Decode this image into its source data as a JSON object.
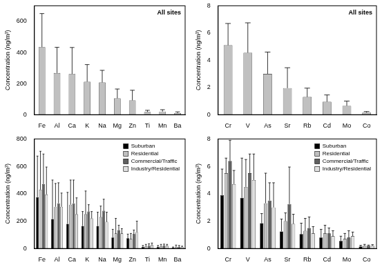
{
  "chart_data": [
    {
      "type": "bar",
      "title": "All sites",
      "y_label": "Concentration (ng/m³)",
      "categories": [
        "Fe",
        "Al",
        "Ca",
        "K",
        "Na",
        "Mg",
        "Zn",
        "Ti",
        "Mn",
        "Ba"
      ],
      "values": [
        435,
        268,
        262,
        212,
        207,
        105,
        92,
        18,
        20,
        10
      ],
      "errors": [
        215,
        165,
        170,
        110,
        78,
        60,
        65,
        10,
        12,
        8
      ],
      "color": "#c0c0c0",
      "ylim": [
        0,
        700
      ],
      "yticks": [
        0,
        200,
        400,
        600
      ],
      "grid": false
    },
    {
      "type": "bar",
      "title": "All sites",
      "y_label": "Concentration (ng/m³)",
      "categories": [
        "Cr",
        "V",
        "As",
        "Sr",
        "Rb",
        "Cd",
        "Mo",
        "Co"
      ],
      "values": [
        5.1,
        4.55,
        3.0,
        1.95,
        1.3,
        0.95,
        0.65,
        0.15
      ],
      "errors": [
        1.6,
        2.2,
        1.6,
        1.5,
        0.65,
        0.5,
        0.35,
        0.08
      ],
      "color": "#c0c0c0",
      "ylim": [
        0,
        8
      ],
      "yticks": [
        0,
        2,
        4,
        6,
        8
      ],
      "grid": false
    },
    {
      "type": "bar",
      "y_label": "Concentration (ng/m³)",
      "categories": [
        "Fe",
        "Al",
        "Ca",
        "K",
        "Na",
        "Mg",
        "Zn",
        "Ti",
        "Mn",
        "Ba"
      ],
      "series": [
        {
          "name": "Suburban",
          "color": "#000000",
          "values": [
            375,
            215,
            180,
            165,
            165,
            80,
            75,
            12,
            12,
            6
          ],
          "errors": [
            300,
            285,
            230,
            105,
            100,
            60,
            30,
            10,
            10,
            5
          ]
        },
        {
          "name": "Residential",
          "color": "#c0c0c0",
          "values": [
            430,
            305,
            320,
            250,
            230,
            110,
            70,
            15,
            15,
            10
          ],
          "errors": [
            280,
            170,
            180,
            170,
            80,
            110,
            40,
            15,
            15,
            15
          ]
        },
        {
          "name": "Commercial/Traffic",
          "color": "#606060",
          "values": [
            470,
            330,
            330,
            270,
            275,
            135,
            105,
            20,
            22,
            12
          ],
          "errors": [
            220,
            150,
            170,
            50,
            85,
            35,
            30,
            15,
            10,
            10
          ]
        },
        {
          "name": "Industry/Residential",
          "color": "#e0e0e0",
          "values": [
            395,
            305,
            250,
            220,
            195,
            110,
            120,
            25,
            20,
            12
          ],
          "errors": [
            200,
            100,
            120,
            50,
            70,
            35,
            80,
            15,
            10,
            5
          ]
        }
      ],
      "ylim": [
        0,
        800
      ],
      "yticks": [
        0,
        200,
        400,
        600,
        800
      ],
      "grid": false,
      "legend": "upper right"
    },
    {
      "type": "bar",
      "y_label": "Concentration (ng/m³)",
      "categories": [
        "Cr",
        "V",
        "As",
        "Sr",
        "Rb",
        "Cd",
        "Mo",
        "Co"
      ],
      "series": [
        {
          "name": "Suburban",
          "color": "#000000",
          "values": [
            3.9,
            3.7,
            1.85,
            1.25,
            1.05,
            0.8,
            0.55,
            0.15
          ],
          "errors": [
            1.9,
            2.9,
            0.7,
            0.9,
            0.8,
            0.6,
            0.35,
            0.08
          ]
        },
        {
          "name": "Residential",
          "color": "#c0c0c0",
          "values": [
            5.5,
            4.5,
            3.3,
            2.0,
            1.3,
            1.1,
            0.7,
            0.2
          ],
          "errors": [
            1.1,
            2.0,
            2.2,
            0.6,
            0.9,
            0.6,
            0.4,
            0.1
          ]
        },
        {
          "name": "Commercial/Traffic",
          "color": "#606060",
          "values": [
            6.4,
            5.5,
            3.5,
            3.25,
            1.5,
            1.1,
            0.8,
            0.2
          ],
          "errors": [
            1.5,
            1.4,
            1.3,
            2.7,
            0.8,
            0.4,
            0.5,
            0.05
          ]
        },
        {
          "name": "Industry/Residential",
          "color": "#e0e0e0",
          "values": [
            4.7,
            5.0,
            3.0,
            1.8,
            1.1,
            0.9,
            0.9,
            0.2
          ],
          "errors": [
            1.0,
            1.9,
            1.8,
            0.7,
            0.5,
            0.4,
            0.3,
            0.08
          ]
        }
      ],
      "ylim": [
        0,
        8
      ],
      "yticks": [
        0,
        2,
        4,
        6,
        8
      ],
      "grid": false,
      "legend": "upper right"
    }
  ]
}
